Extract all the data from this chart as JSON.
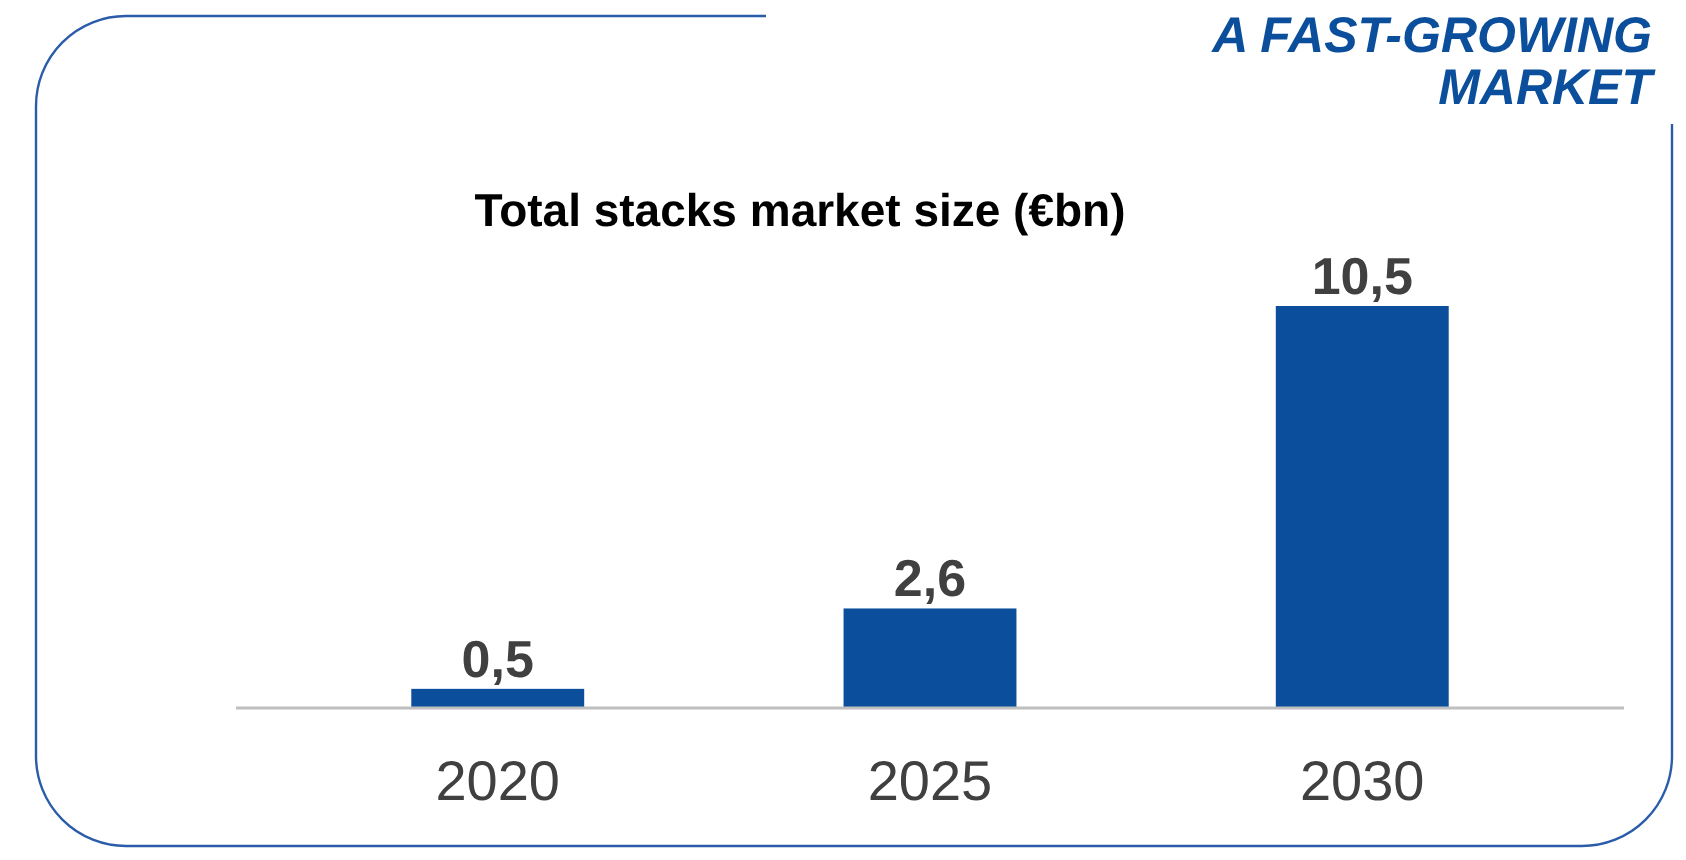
{
  "chart_data": {
    "type": "bar",
    "title": "Total stacks market size (€bn)",
    "annotations": [
      "A FAST-GROWING",
      "MARKET"
    ],
    "categories": [
      "2020",
      "2025",
      "2030"
    ],
    "values": [
      0.5,
      2.6,
      10.5
    ],
    "value_labels": [
      "0,5",
      "2,6",
      "10,5"
    ],
    "color": "#0b4f9c"
  }
}
